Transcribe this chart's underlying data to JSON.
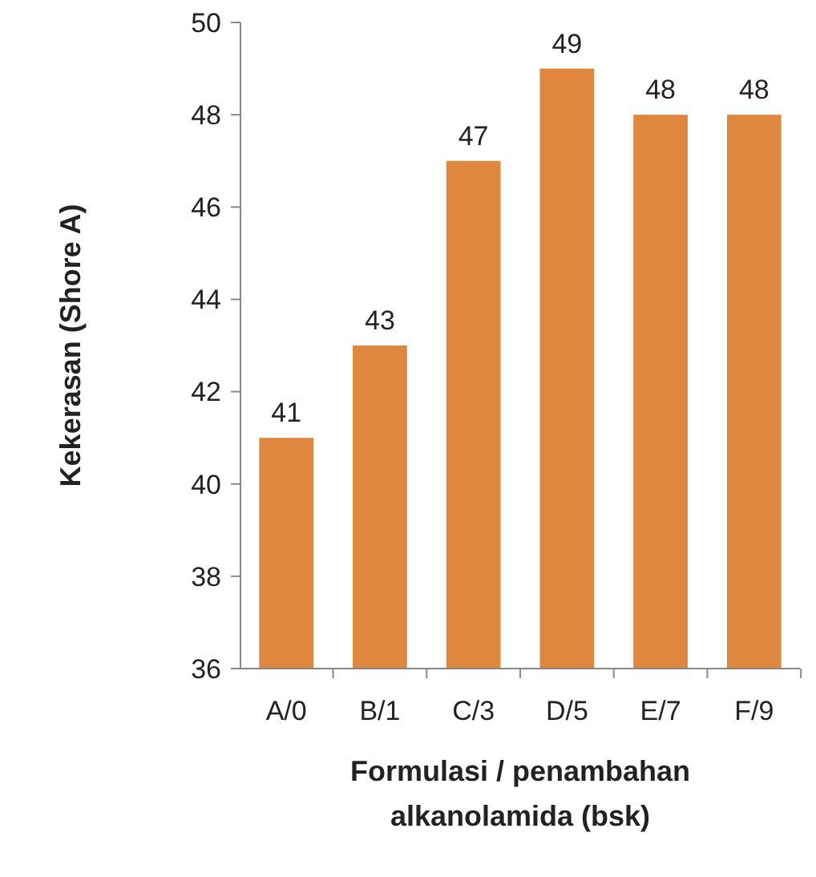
{
  "chart_data": {
    "type": "bar",
    "xlabel": "Formulasi / penambahan\nalkanolamida (bsk)",
    "ylabel": "Kekerasan (Shore A)",
    "categories": [
      "A/0",
      "B/1",
      "C/3",
      "D/5",
      "E/7",
      "F/9"
    ],
    "values": [
      41,
      43,
      47,
      49,
      48,
      48
    ],
    "color": "#e0873f",
    "ylim": [
      36,
      50
    ],
    "yticks": [
      36,
      38,
      40,
      42,
      44,
      46,
      48,
      50
    ],
    "data_labels": true,
    "grid": false
  }
}
